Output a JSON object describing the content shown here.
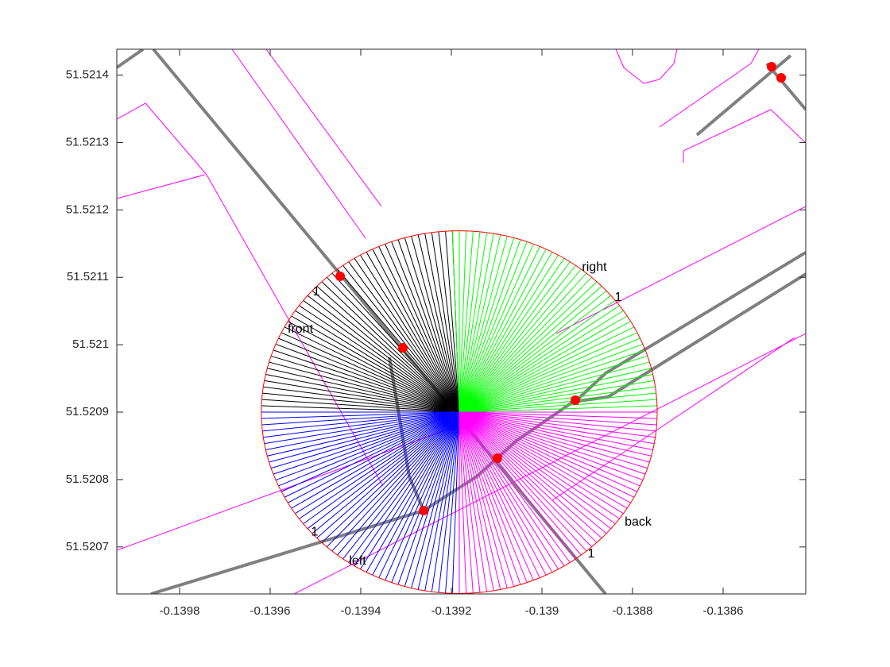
{
  "chart_data": {
    "type": "map",
    "xlim": [
      -0.1399386,
      -0.1384175
    ],
    "ylim": [
      51.5206303,
      51.5214383
    ],
    "xticks": [
      -0.1398,
      -0.1396,
      -0.1394,
      -0.1392,
      -0.139,
      -0.1388,
      -0.1386
    ],
    "yticks": [
      51.5207,
      51.5208,
      51.5209,
      51.521,
      51.5211,
      51.5212,
      51.5213,
      51.5214
    ],
    "lines": [
      {
        "color": "#ff00ff",
        "width": 1,
        "x": [
          -0.1399386,
          -0.1398754,
          -0.1397404,
          -0.1393509
        ],
        "y": [
          51.5213346,
          51.5213582,
          51.5212522,
          51.5207905
        ]
      },
      {
        "color": "#ff00ff",
        "width": 1,
        "x": [
          -0.1399386,
          -0.1397439
        ],
        "y": [
          51.5212168,
          51.5212522
        ]
      },
      {
        "color": "#ff00ff",
        "width": 1,
        "x": [
          -0.1396842,
          -0.1393895
        ],
        "y": [
          51.5214383,
          51.521158
        ]
      },
      {
        "color": "#ff00ff",
        "width": 1,
        "x": [
          -0.1396088,
          -0.1393544
        ],
        "y": [
          51.5214383,
          51.5212051
        ]
      },
      {
        "color": "#ff00ff",
        "width": 1,
        "x": [
          -0.1399386,
          -0.1391088
        ],
        "y": [
          51.5206951,
          51.5208988
        ]
      },
      {
        "color": "#ff00ff",
        "width": 1,
        "x": [
          -0.1389684,
          -0.1384175
        ],
        "y": [
          51.5210166,
          51.5212051
        ]
      },
      {
        "color": "#ff00ff",
        "width": 1,
        "x": [
          -0.1395474,
          -0.1384175
        ],
        "y": [
          51.5206303,
          51.5210166
        ]
      },
      {
        "color": "#ff00ff",
        "width": 1,
        "x": [
          -0.1389772,
          -0.1384421
        ],
        "y": [
          51.5207693,
          51.5210107
        ]
      },
      {
        "color": "#ff00ff",
        "width": 1,
        "x": [
          -0.1387404,
          -0.1385386,
          -0.1385211
        ],
        "y": [
          51.5213229,
          51.5214171,
          51.5214383
        ]
      },
      {
        "color": "#ff00ff",
        "width": 1,
        "x": [
          -0.1386877,
          -0.1386877,
          -0.1384947,
          -0.1384175
        ],
        "y": [
          51.5212698,
          51.5212875,
          51.5213488,
          51.5212993
        ]
      },
      {
        "color": "#ff00ff",
        "width": 1,
        "x": [
          -0.1388368,
          -0.1388193,
          -0.1387754,
          -0.1387404,
          -0.1387088,
          -0.1387018
        ],
        "y": [
          51.5214383,
          51.5214112,
          51.5213876,
          51.5213935,
          51.5214171,
          51.5214383
        ]
      },
      {
        "color": "#808080",
        "width": 4,
        "x": [
          -0.1398579,
          -0.1388596
        ],
        "y": [
          51.5214383,
          51.5206303
        ]
      },
      {
        "color": "#808080",
        "width": 4,
        "x": [
          -0.1393368,
          -0.139293,
          -0.1392614
        ],
        "y": [
          51.5209813,
          51.5208046,
          51.5207539
        ]
      },
      {
        "color": "#808080",
        "width": 4,
        "x": [
          -0.1398632,
          -0.1392614,
          -0.1391439,
          -0.1390561,
          -0.1389158,
          -0.1388596,
          -0.1384175
        ],
        "y": [
          51.5206303,
          51.5207539,
          51.5208046,
          51.5208576,
          51.5209224,
          51.5209577,
          51.5211368
        ]
      },
      {
        "color": "#808080",
        "width": 4,
        "x": [
          -0.1389193,
          -0.1388544,
          -0.1384175
        ],
        "y": [
          51.5209165,
          51.5209224,
          51.5211049
        ]
      },
      {
        "color": "#808080",
        "width": 4,
        "x": [
          -0.1399386,
          -0.1398807
        ],
        "y": [
          51.5214112,
          51.5214383
        ]
      },
      {
        "color": "#808080",
        "width": 4,
        "x": [
          -0.1386579,
          -0.1384509
        ],
        "y": [
          51.5213111,
          51.5214289
        ]
      },
      {
        "color": "#808080",
        "width": 4,
        "x": [
          -0.1385035,
          -0.1384175
        ],
        "y": [
          51.5214171,
          51.5213488
        ]
      }
    ],
    "circle": {
      "center": [
        -0.1391825,
        51.5209
      ],
      "radius": [
        0.000437,
        0.000269
      ],
      "color": "#ff0000"
    },
    "ray_step": 2,
    "sectors": [
      {
        "color": "#000000",
        "angles": [
          92,
          180
        ]
      },
      {
        "color": "#00ff00",
        "angles": [
          0,
          92
        ]
      },
      {
        "color": "#0000ff",
        "angles": [
          180,
          270
        ]
      },
      {
        "color": "#ff00ff",
        "angles": [
          270,
          360
        ]
      }
    ],
    "points": {
      "color": "#ff0000",
      "x": [
        -0.1394456,
        -0.139307,
        -0.1389263,
        -0.1390982,
        -0.1392614,
        -0.138493,
        -0.1384719
      ],
      "y": [
        51.5211014,
        51.5209954,
        51.5209177,
        51.5208317,
        51.5207539,
        51.5214124,
        51.5213959
      ]
    },
    "annotations": [
      {
        "text": "right",
        "x": -0.1388842,
        "y": 51.5211144
      },
      {
        "text": "1",
        "x": -0.1388316,
        "y": 51.5210696
      },
      {
        "text": "front",
        "x": -0.1395333,
        "y": 51.5210225
      },
      {
        "text": "1",
        "x": -0.1394982,
        "y": 51.5210779
      },
      {
        "text": "back",
        "x": -0.1387877,
        "y": 51.5207363
      },
      {
        "text": "1",
        "x": -0.1388912,
        "y": 51.5206892
      },
      {
        "text": "left",
        "x": -0.139407,
        "y": 51.5206786
      },
      {
        "text": "1",
        "x": -0.1395018,
        "y": 51.5207221
      }
    ]
  }
}
